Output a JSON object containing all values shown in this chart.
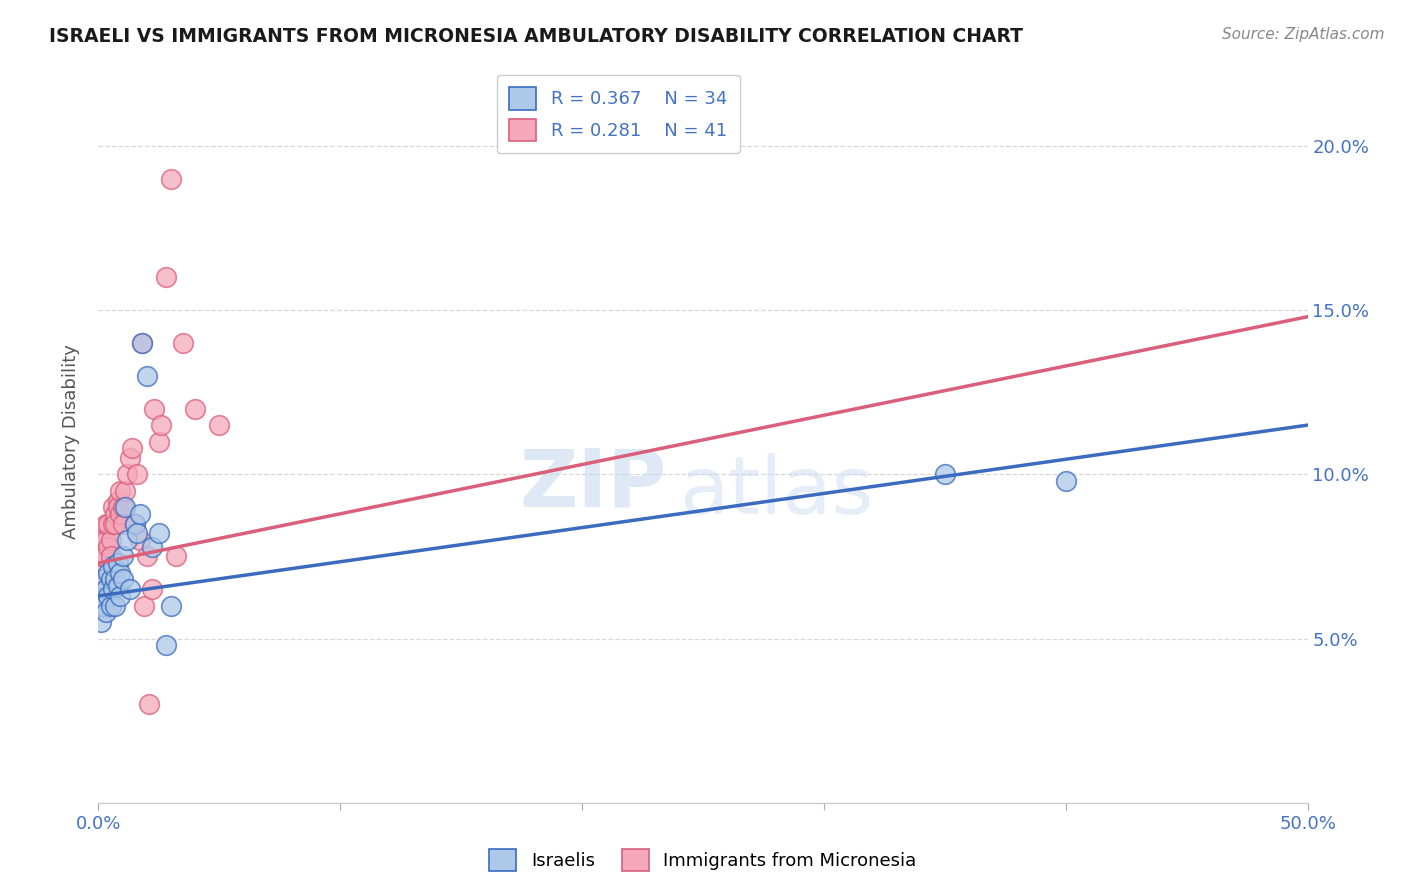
{
  "title": "ISRAELI VS IMMIGRANTS FROM MICRONESIA AMBULATORY DISABILITY CORRELATION CHART",
  "source": "Source: ZipAtlas.com",
  "ylabel": "Ambulatory Disability",
  "xlim": [
    0.0,
    0.5
  ],
  "ylim": [
    0.0,
    0.22
  ],
  "yticks": [
    0.05,
    0.1,
    0.15,
    0.2
  ],
  "ytick_labels": [
    "5.0%",
    "10.0%",
    "15.0%",
    "20.0%"
  ],
  "xticks": [
    0.0,
    0.1,
    0.2,
    0.3,
    0.4,
    0.5
  ],
  "xtick_labels": [
    "0.0%",
    "",
    "",
    "",
    "",
    "50.0%"
  ],
  "legend_r1": "R = 0.367",
  "legend_n1": "N = 34",
  "legend_r2": "R = 0.281",
  "legend_n2": "N = 41",
  "israeli_color": "#adc8e8",
  "micronesia_color": "#f5a8bc",
  "israeli_line_color": "#3a6bbf",
  "micronesia_line_color": "#d95f7a",
  "israelis_x": [
    0.001,
    0.001,
    0.002,
    0.002,
    0.003,
    0.003,
    0.004,
    0.004,
    0.005,
    0.005,
    0.006,
    0.006,
    0.007,
    0.007,
    0.008,
    0.008,
    0.009,
    0.009,
    0.01,
    0.01,
    0.011,
    0.012,
    0.013,
    0.015,
    0.016,
    0.017,
    0.018,
    0.02,
    0.022,
    0.025,
    0.028,
    0.03,
    0.35,
    0.4
  ],
  "israelis_y": [
    0.062,
    0.055,
    0.068,
    0.06,
    0.065,
    0.058,
    0.07,
    0.063,
    0.068,
    0.06,
    0.072,
    0.065,
    0.068,
    0.06,
    0.073,
    0.066,
    0.07,
    0.063,
    0.075,
    0.068,
    0.09,
    0.08,
    0.065,
    0.085,
    0.082,
    0.088,
    0.14,
    0.13,
    0.078,
    0.082,
    0.048,
    0.06,
    0.1,
    0.098
  ],
  "micronesia_x": [
    0.001,
    0.001,
    0.002,
    0.002,
    0.003,
    0.003,
    0.004,
    0.004,
    0.005,
    0.005,
    0.006,
    0.006,
    0.007,
    0.007,
    0.008,
    0.008,
    0.009,
    0.009,
    0.01,
    0.01,
    0.011,
    0.012,
    0.013,
    0.014,
    0.015,
    0.016,
    0.017,
    0.018,
    0.019,
    0.02,
    0.021,
    0.022,
    0.023,
    0.025,
    0.026,
    0.028,
    0.03,
    0.032,
    0.035,
    0.04,
    0.05
  ],
  "micronesia_y": [
    0.07,
    0.075,
    0.075,
    0.08,
    0.08,
    0.085,
    0.085,
    0.078,
    0.08,
    0.075,
    0.085,
    0.09,
    0.088,
    0.085,
    0.092,
    0.09,
    0.095,
    0.088,
    0.09,
    0.085,
    0.095,
    0.1,
    0.105,
    0.108,
    0.085,
    0.1,
    0.08,
    0.14,
    0.06,
    0.075,
    0.03,
    0.065,
    0.12,
    0.11,
    0.115,
    0.16,
    0.19,
    0.075,
    0.14,
    0.12,
    0.115
  ],
  "israeli_line_x": [
    0.0,
    0.5
  ],
  "israeli_line_y": [
    0.063,
    0.115
  ],
  "micronesia_line_x": [
    0.0,
    0.5
  ],
  "micronesia_line_y": [
    0.073,
    0.148
  ],
  "watermark_zip": "ZIP",
  "watermark_atlas": "atlas",
  "background_color": "#ffffff",
  "grid_color": "#d8d8d8"
}
